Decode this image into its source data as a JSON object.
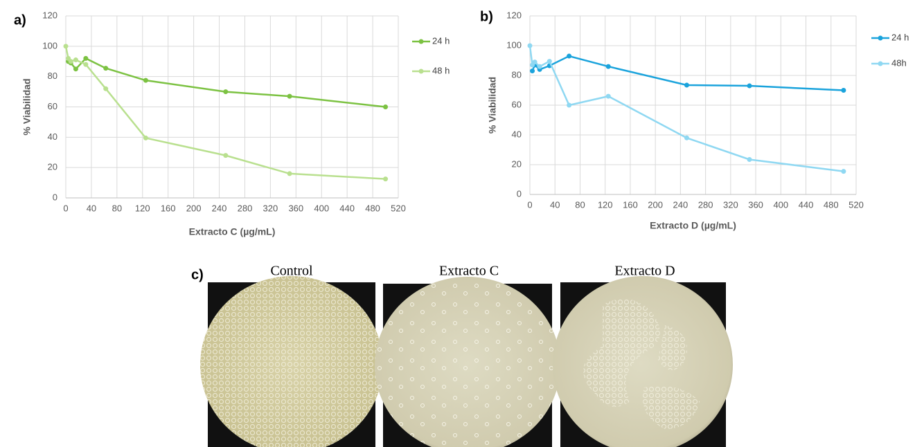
{
  "chart_data": [
    {
      "type": "line",
      "panel_label": "a)",
      "xlabel": "Extracto C (µg/mL)",
      "ylabel": "% Viabilidad",
      "x": [
        0,
        3.9,
        7.8,
        15.6,
        31.25,
        62.5,
        125,
        250,
        350,
        500
      ],
      "series": [
        {
          "name": "24 h",
          "color": "#7cc242",
          "values": [
            null,
            90,
            89,
            85,
            92,
            85.5,
            77.5,
            70,
            67,
            60
          ]
        },
        {
          "name": "48 h",
          "color": "#b9e08f",
          "values": [
            100,
            92,
            90,
            91,
            88,
            72,
            39.5,
            28,
            16,
            12.5
          ]
        }
      ],
      "xlim": [
        0,
        520
      ],
      "xticks": [
        0,
        40,
        80,
        120,
        160,
        200,
        240,
        280,
        320,
        360,
        400,
        440,
        480,
        520
      ],
      "ylim": [
        0,
        120
      ],
      "yticks": [
        0,
        20,
        40,
        60,
        80,
        100,
        120
      ],
      "grid": true,
      "legend": "right"
    },
    {
      "type": "line",
      "panel_label": "b)",
      "xlabel": "Extracto D (µg/mL)",
      "ylabel": "% Viabilidad",
      "x": [
        0,
        3.9,
        7.8,
        15.6,
        31.25,
        62.5,
        125,
        250,
        350,
        500
      ],
      "series": [
        {
          "name": "24 h",
          "color": "#1aa3dc",
          "values": [
            null,
            83,
            87,
            84,
            86.5,
            93,
            86,
            73.5,
            73,
            70
          ]
        },
        {
          "name": "48h",
          "color": "#8fd8f2",
          "values": [
            100,
            87,
            89,
            86,
            89.5,
            60,
            66,
            38,
            23.5,
            15.5
          ]
        }
      ],
      "xlim": [
        0,
        520
      ],
      "xticks": [
        0,
        40,
        80,
        120,
        160,
        200,
        240,
        280,
        320,
        360,
        400,
        440,
        480,
        520
      ],
      "ylim": [
        0,
        120
      ],
      "yticks": [
        0,
        20,
        40,
        60,
        80,
        100,
        120
      ],
      "grid": true,
      "legend": "right"
    }
  ],
  "panel_c": {
    "label": "c)",
    "images": [
      {
        "title": "Control"
      },
      {
        "title": "Extracto C"
      },
      {
        "title": "Extracto D"
      }
    ]
  }
}
